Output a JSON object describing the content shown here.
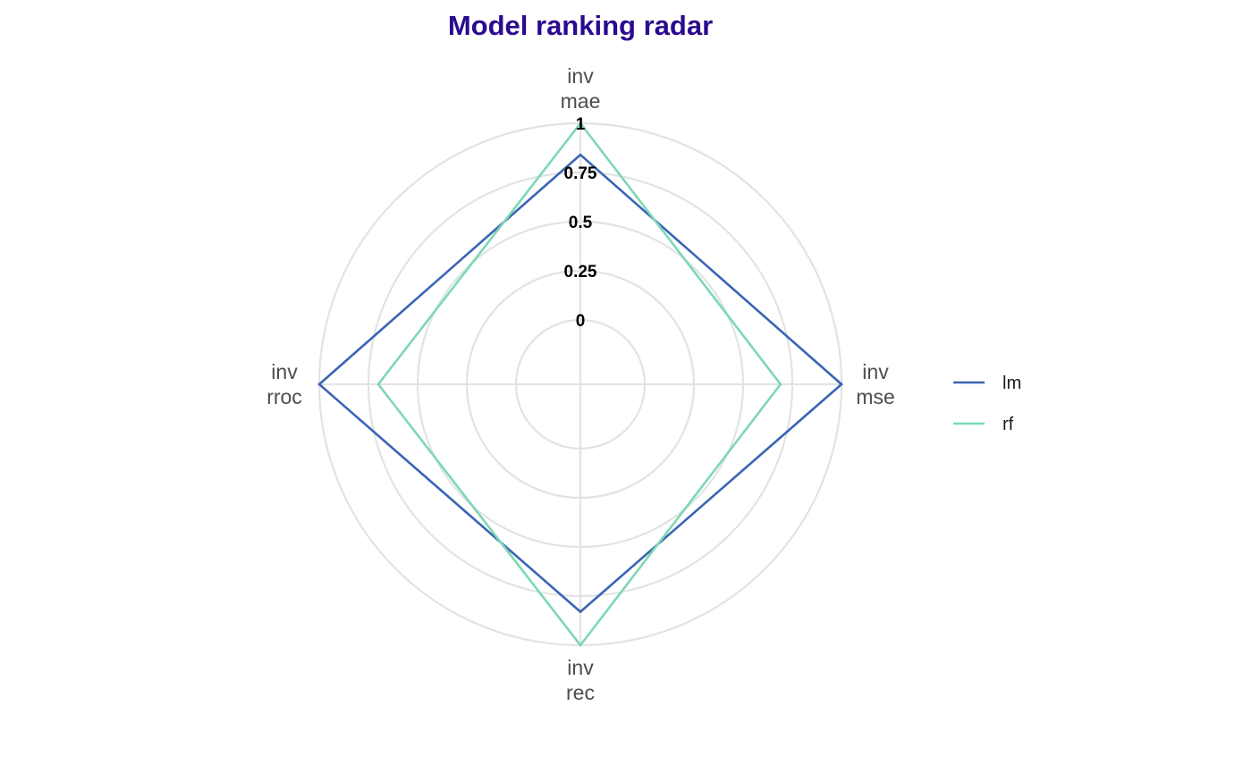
{
  "chart_data": {
    "type": "radar",
    "title": "Model ranking radar",
    "axes": [
      [
        "inv",
        "mae"
      ],
      [
        "inv",
        "mse"
      ],
      [
        "inv",
        "rec"
      ],
      [
        "inv",
        "rroc"
      ]
    ],
    "r_ticks": [
      "0",
      "0.25",
      "0.5",
      "0.75",
      "1"
    ],
    "r_range": [
      0,
      1
    ],
    "series": [
      {
        "name": "lm",
        "values": [
          0.84,
          1.0,
          0.83,
          1.0
        ]
      },
      {
        "name": "rf",
        "values": [
          1.0,
          0.69,
          1.0,
          0.7
        ]
      }
    ],
    "grid": true,
    "legend_position": "right"
  },
  "colors": {
    "title": "#2a0a8e",
    "grid": "#e3e3e3",
    "series": [
      "#3a64b5",
      "#7dd8b4"
    ]
  }
}
